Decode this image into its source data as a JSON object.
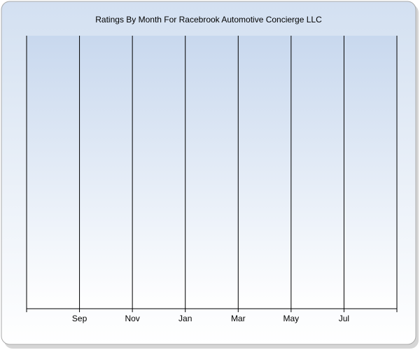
{
  "chart_data": {
    "type": "line",
    "title": "Ratings By Month For Racebrook Automotive Concierge LLC",
    "categories": [
      null,
      "Sep",
      "Nov",
      "Jan",
      "Mar",
      "May",
      "Jul",
      null
    ],
    "grid": true
  }
}
